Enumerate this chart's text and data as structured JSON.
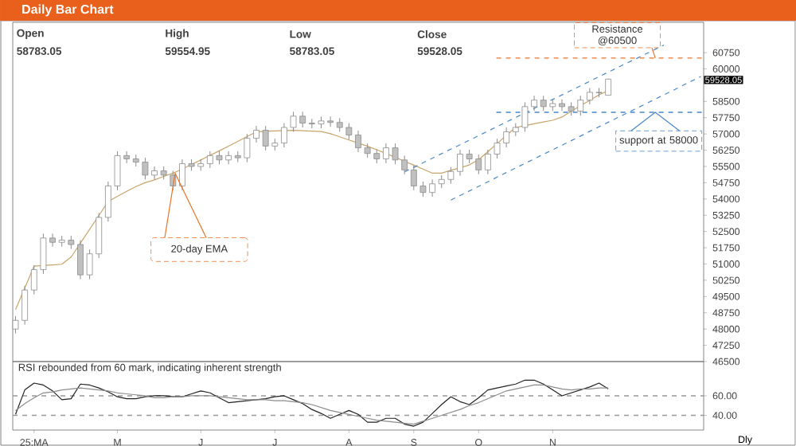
{
  "chart_data": [
    {
      "type": "candlestick",
      "title": "Daily Bar Chart",
      "color": "#8c8c8c",
      "categories": [
        null,
        null,
        null,
        null,
        null,
        null,
        null,
        null,
        null,
        null,
        null,
        null,
        null,
        null,
        null,
        null,
        null,
        null,
        null,
        null,
        null,
        null,
        null,
        null,
        null,
        null,
        null,
        null,
        null,
        null,
        null,
        null,
        null,
        null,
        null,
        null,
        null,
        null,
        null,
        null,
        null,
        null,
        null,
        null,
        null,
        null,
        null,
        null,
        null,
        null,
        null,
        null,
        null,
        null,
        null,
        null,
        null,
        null,
        null,
        null,
        null,
        null,
        null,
        null,
        null,
        null,
        null,
        null,
        null,
        null,
        null,
        null,
        null,
        null,
        null
      ],
      "ohlc": [
        [
          48000,
          48600,
          47800,
          48400
        ],
        [
          48400,
          50000,
          48200,
          49800
        ],
        [
          49800,
          50940,
          49600,
          50740
        ],
        [
          50740,
          52400,
          50540,
          52200
        ],
        [
          52200,
          52400,
          51800,
          52000
        ],
        [
          52000,
          52300,
          51800,
          52100
        ],
        [
          52100,
          52300,
          51700,
          51900
        ],
        [
          51900,
          52100,
          50300,
          50500
        ],
        [
          50500,
          51670,
          50300,
          51470
        ],
        [
          51470,
          53350,
          51270,
          53150
        ],
        [
          53150,
          54800,
          52950,
          54600
        ],
        [
          54600,
          56200,
          54400,
          56000
        ],
        [
          56000,
          56200,
          55650,
          55850
        ],
        [
          55850,
          56050,
          55500,
          55700
        ],
        [
          55700,
          55900,
          54900,
          55100
        ],
        [
          55100,
          55500,
          54900,
          55300
        ],
        [
          55300,
          55500,
          54900,
          55100
        ],
        [
          55100,
          55300,
          54400,
          54600
        ],
        [
          54600,
          55830,
          54400,
          55630
        ],
        [
          55630,
          55830,
          55300,
          55500
        ],
        [
          55500,
          55830,
          55300,
          55630
        ],
        [
          55630,
          56200,
          55430,
          56000
        ],
        [
          56000,
          56200,
          55600,
          55800
        ],
        [
          55800,
          56200,
          55600,
          56000
        ],
        [
          56000,
          56200,
          55700,
          55900
        ],
        [
          55900,
          57000,
          55700,
          56800
        ],
        [
          56800,
          57370,
          56600,
          57170
        ],
        [
          57170,
          57370,
          56240,
          56440
        ],
        [
          56440,
          56780,
          56240,
          56580
        ],
        [
          56580,
          57500,
          56380,
          57300
        ],
        [
          57300,
          58020,
          57100,
          57820
        ],
        [
          57820,
          58020,
          57300,
          57500
        ],
        [
          57500,
          57700,
          57260,
          57460
        ],
        [
          57460,
          57800,
          57260,
          57600
        ],
        [
          57600,
          57800,
          57330,
          57530
        ],
        [
          57530,
          57730,
          57100,
          57300
        ],
        [
          57300,
          57500,
          56750,
          56950
        ],
        [
          56950,
          57150,
          56160,
          56360
        ],
        [
          56360,
          56560,
          55900,
          56100
        ],
        [
          56100,
          56300,
          55650,
          55850
        ],
        [
          55850,
          56560,
          55650,
          56360
        ],
        [
          56360,
          56560,
          55600,
          55800
        ],
        [
          55800,
          56000,
          55140,
          55340
        ],
        [
          55340,
          55540,
          54400,
          54600
        ],
        [
          54600,
          54800,
          54100,
          54300
        ],
        [
          54300,
          54900,
          54100,
          54700
        ],
        [
          54700,
          55100,
          54500,
          54900
        ],
        [
          54900,
          55470,
          54700,
          55270
        ],
        [
          55270,
          56270,
          55070,
          56070
        ],
        [
          56070,
          56270,
          55650,
          55850
        ],
        [
          55850,
          56050,
          55140,
          55340
        ],
        [
          55340,
          56270,
          55140,
          56070
        ],
        [
          56070,
          56780,
          55870,
          56580
        ],
        [
          56580,
          57300,
          56380,
          57100
        ],
        [
          57100,
          57500,
          56900,
          57300
        ],
        [
          57300,
          58460,
          57100,
          58260
        ],
        [
          58260,
          58760,
          58060,
          58560
        ],
        [
          58560,
          58760,
          58060,
          58260
        ],
        [
          58260,
          58600,
          58060,
          58400
        ],
        [
          58400,
          58600,
          58060,
          58260
        ],
        [
          58260,
          58460,
          57850,
          58050
        ],
        [
          58050,
          58760,
          57850,
          58560
        ],
        [
          58560,
          59120,
          58360,
          58920
        ],
        [
          58920,
          59120,
          58700,
          58900
        ],
        [
          58783.05,
          59554.95,
          58783.05,
          59528.05
        ],
        null,
        null,
        null,
        null,
        null,
        null,
        null,
        null,
        null,
        null
      ],
      "series": [
        {
          "type": "line",
          "color": "#c9a46a",
          "values": [
            48900,
            49900,
            50900,
            50930,
            50960,
            50990,
            51320,
            51960,
            52600,
            53240,
            53880,
            54120,
            54350,
            54570,
            54750,
            54880,
            55040,
            55190,
            55380,
            55590,
            55800,
            56010,
            56220,
            56440,
            56660,
            56880,
            57100,
            57120,
            57140,
            57160,
            57170,
            57150,
            57130,
            57110,
            57010,
            56870,
            56720,
            56580,
            56430,
            56270,
            56100,
            55920,
            55740,
            55560,
            55380,
            55190,
            55190,
            55320,
            55440,
            55570,
            55810,
            56180,
            56560,
            56930,
            57300,
            57380,
            57470,
            57550,
            57630,
            57780,
            58040,
            58300,
            58550,
            58810,
            58990,
            null,
            null,
            null,
            null,
            null,
            null,
            null,
            null,
            null,
            null
          ]
        },
        {
          "type": "line",
          "color": "#4a86c8",
          "line_style": "dashed",
          "values": [
            null,
            null,
            null,
            null,
            null,
            null,
            null,
            null,
            null,
            null,
            null,
            null,
            null,
            null,
            null,
            null,
            null,
            null,
            null,
            null,
            null,
            null,
            null,
            null,
            null,
            null,
            null,
            null,
            null,
            null,
            null,
            null,
            null,
            null,
            null,
            null,
            null,
            null,
            null,
            null,
            null,
            null,
            55250,
            55460,
            55670,
            55880,
            56090,
            56300,
            56500,
            56710,
            56920,
            57130,
            57340,
            57550,
            57760,
            57970,
            58180,
            58390,
            58590,
            58800,
            59010,
            59220,
            59430,
            59640,
            59850,
            60060,
            60270,
            60470,
            60680,
            60890,
            61100,
            null,
            null,
            null,
            null
          ]
        },
        {
          "type": "line",
          "color": "#4a86c8",
          "line_style": "dashed",
          "values": [
            null,
            null,
            null,
            null,
            null,
            null,
            null,
            null,
            null,
            null,
            null,
            null,
            null,
            null,
            null,
            null,
            null,
            null,
            null,
            null,
            null,
            null,
            null,
            null,
            null,
            null,
            null,
            null,
            null,
            null,
            null,
            null,
            null,
            null,
            null,
            null,
            null,
            null,
            null,
            null,
            null,
            null,
            null,
            null,
            null,
            null,
            null,
            53950,
            54160,
            54370,
            54580,
            54790,
            55010,
            55220,
            55430,
            55640,
            55850,
            56060,
            56270,
            56480,
            56690,
            56900,
            57120,
            57330,
            57540,
            57750,
            57960,
            58170,
            58380,
            58590,
            58800,
            59010,
            59230,
            59440,
            59650
          ]
        }
      ],
      "ylim": [
        46500,
        62150
      ],
      "yticks": [
        46500,
        47250,
        48000,
        48750,
        49500,
        50250,
        51000,
        51750,
        52500,
        53250,
        54000,
        54750,
        55500,
        56250,
        57000,
        57750,
        58500,
        60000,
        60750
      ],
      "tick_labels": "y",
      "ref_lines": [
        {
          "axis": "y",
          "value": 60500,
          "label": "Resistance @60500",
          "color": "#e8742a",
          "line_style": "dashed"
        },
        {
          "axis": "y",
          "value": 58000,
          "label": "support at 58000",
          "color": "#4a86c8",
          "line_style": "dashed"
        }
      ],
      "annotations": [
        "Open",
        "High",
        "Low",
        "Close",
        "58783.05",
        "59554.95",
        "58783.05",
        "59528.05",
        "20-day EMA",
        "59528.05"
      ]
    },
    {
      "type": "line",
      "xlabel": "Dly",
      "categories": [
        null,
        null,
        "25:MA",
        null,
        null,
        null,
        null,
        null,
        null,
        null,
        null,
        "M",
        null,
        null,
        null,
        null,
        null,
        null,
        null,
        null,
        "J",
        null,
        null,
        null,
        null,
        null,
        null,
        null,
        "J",
        null,
        null,
        null,
        null,
        null,
        null,
        null,
        "A",
        null,
        null,
        null,
        null,
        null,
        null,
        "S",
        null,
        null,
        null,
        null,
        null,
        null,
        "O",
        null,
        null,
        null,
        null,
        null,
        null,
        null,
        "N",
        null,
        null,
        null,
        null,
        null,
        null,
        null,
        null,
        null,
        null,
        null,
        null,
        null,
        null,
        null,
        null
      ],
      "series": [
        {
          "color": "#222222",
          "values": [
            41,
            66,
            73,
            71,
            65,
            56,
            57,
            72,
            71,
            68,
            64,
            59,
            57,
            57,
            59,
            60,
            60,
            59,
            59,
            62,
            65,
            63,
            58,
            53,
            54,
            55,
            56,
            57,
            59,
            60,
            56,
            52,
            46,
            42,
            37,
            41,
            45,
            41,
            33,
            33,
            37,
            37,
            31,
            29,
            33,
            42,
            51,
            59,
            54,
            51,
            58,
            66,
            68,
            70,
            72,
            76,
            76,
            72,
            66,
            60,
            63,
            66,
            69,
            73,
            67,
            null,
            null,
            null,
            null,
            null,
            null,
            null,
            null,
            null,
            null
          ]
        },
        {
          "color": "#8c8c8c",
          "values": [
            45,
            52,
            58,
            63,
            64,
            66,
            67,
            68,
            67,
            66,
            65,
            63,
            62,
            61,
            60,
            58,
            58,
            59,
            59,
            60,
            60,
            60,
            59,
            58,
            57,
            56,
            56,
            56,
            55,
            55,
            54,
            53,
            51,
            48,
            45,
            43,
            41,
            39,
            37,
            35,
            34,
            33,
            32,
            31,
            34,
            37,
            40,
            43,
            46,
            50,
            53,
            57,
            61,
            65,
            67,
            69,
            71,
            71,
            69,
            67,
            66,
            67,
            67,
            68,
            68,
            null,
            null,
            null,
            null,
            null,
            null,
            null,
            null,
            null,
            null
          ]
        }
      ],
      "ylim": [
        25,
        95
      ],
      "yticks": [
        {
          "value": 60,
          "label": "60.00"
        },
        {
          "value": 40,
          "label": "40.00"
        }
      ],
      "ref_lines": [
        {
          "axis": "y",
          "value": 60,
          "color": "#999999",
          "line_style": "dashed"
        },
        {
          "axis": "y",
          "value": 40,
          "color": "#999999",
          "line_style": "dashed"
        }
      ],
      "annotations": [
        "RSI rebounded from 60 mark, indicating inherent strength"
      ]
    }
  ]
}
